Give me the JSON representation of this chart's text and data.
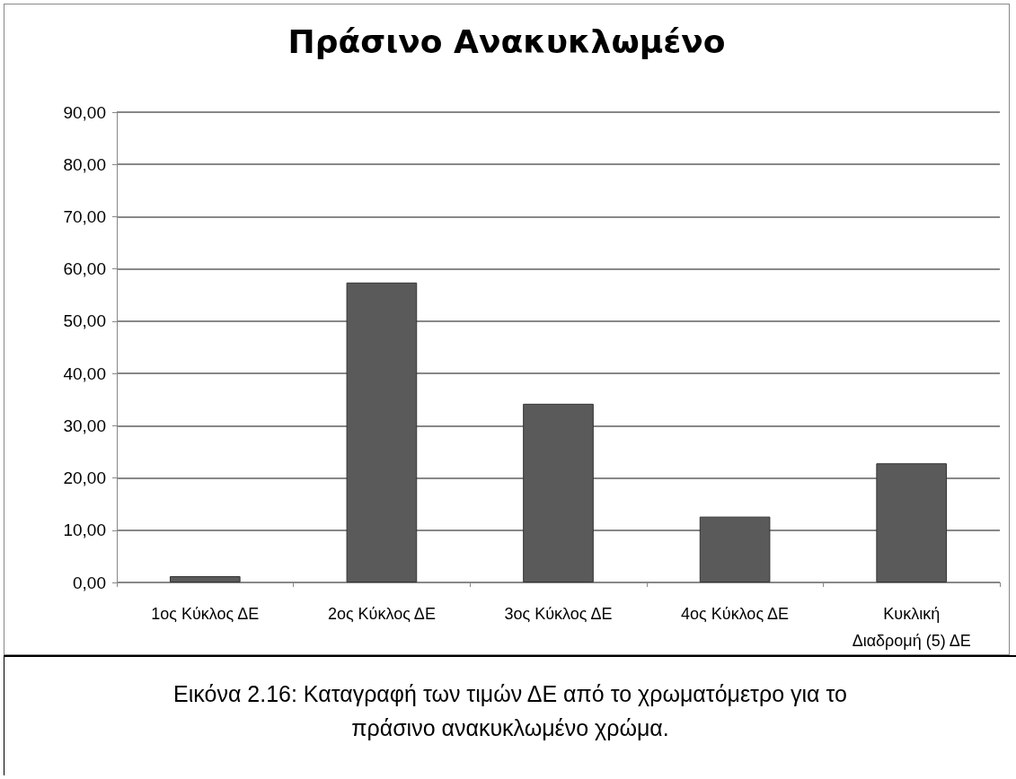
{
  "chart_data": {
    "type": "bar",
    "title": "Πράσινο Ανακυκλωμένο",
    "categories": [
      "1ος Κύκλος ΔΕ",
      "2ος Κύκλος ΔΕ",
      "3ος Κύκλος ΔΕ",
      "4ος Κύκλος ΔΕ",
      "Κυκλική\nΔιαδρομή (5) ΔΕ"
    ],
    "values": [
      1.2,
      57.4,
      34.2,
      12.6,
      22.8
    ],
    "color": "#5a5a5a",
    "ylim": [
      0,
      90
    ],
    "yticks": [
      {
        "value": 0,
        "label": "0,00"
      },
      {
        "value": 10,
        "label": "10,00"
      },
      {
        "value": 20,
        "label": "20,00"
      },
      {
        "value": 30,
        "label": "30,00"
      },
      {
        "value": 40,
        "label": "40,00"
      },
      {
        "value": 50,
        "label": "50,00"
      },
      {
        "value": 60,
        "label": "60,00"
      },
      {
        "value": 70,
        "label": "70,00"
      },
      {
        "value": 80,
        "label": "80,00"
      },
      {
        "value": 90,
        "label": "90,00"
      }
    ],
    "grid": "y",
    "annotations": [
      "Εικόνα 2.16: Καταγραφή των τιμών ΔΕ από το χρωματόμετρο για το πράσινο ανακυκλωμένο χρώμα."
    ]
  }
}
